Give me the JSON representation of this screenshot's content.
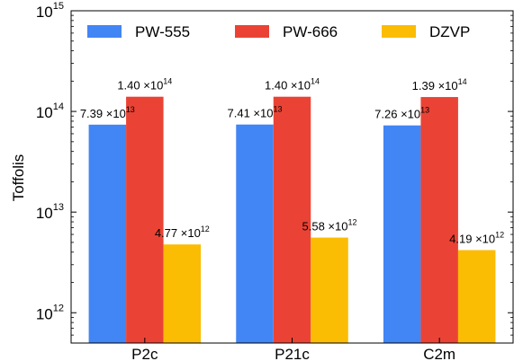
{
  "chart_data": {
    "type": "bar",
    "yscale": "log",
    "ylim": [
      500000000000.0,
      1000000000000000.0
    ],
    "ylabel": "Toffolis",
    "xlabel": "",
    "title": "",
    "categories": [
      "P2c",
      "P21c",
      "C2m"
    ],
    "yticks": [
      {
        "value": 1000000000000.0,
        "base": "10",
        "exp": "12"
      },
      {
        "value": 10000000000000.0,
        "base": "10",
        "exp": "13"
      },
      {
        "value": 100000000000000.0,
        "base": "10",
        "exp": "14"
      },
      {
        "value": 1000000000000000.0,
        "base": "10",
        "exp": "15"
      }
    ],
    "legend_position": "top",
    "series": [
      {
        "name": "PW-555",
        "color": "#4285F4",
        "values": [
          73900000000000.0,
          74100000000000.0,
          72600000000000.0
        ],
        "labels": [
          {
            "mantissa": "7.39",
            "exp": "13"
          },
          {
            "mantissa": "7.41",
            "exp": "13"
          },
          {
            "mantissa": "7.26",
            "exp": "13"
          }
        ]
      },
      {
        "name": "PW-666",
        "color": "#EA4335",
        "values": [
          140000000000000.0,
          140000000000000.0,
          139000000000000.0
        ],
        "labels": [
          {
            "mantissa": "1.40",
            "exp": "14"
          },
          {
            "mantissa": "1.40",
            "exp": "14"
          },
          {
            "mantissa": "1.39",
            "exp": "14"
          }
        ]
      },
      {
        "name": "DZVP",
        "color": "#FBBC04",
        "values": [
          4770000000000.0,
          5580000000000.0,
          4190000000000.0
        ],
        "labels": [
          {
            "mantissa": "4.77",
            "exp": "12"
          },
          {
            "mantissa": "5.58",
            "exp": "12"
          },
          {
            "mantissa": "4.19",
            "exp": "12"
          }
        ]
      }
    ],
    "label_multiplier": "×10"
  }
}
